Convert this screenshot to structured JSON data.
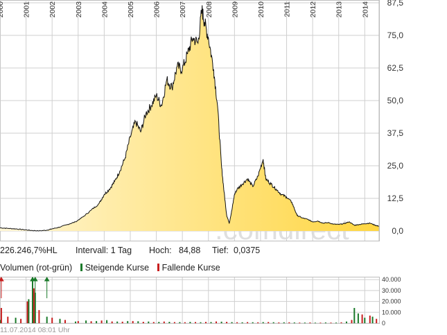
{
  "info": {
    "performance": "226.246,7%HL",
    "interval": "Intervall: 1 Tag",
    "high_label": "Hoch:",
    "high_value": "84,88",
    "low_label": "Tief:",
    "low_value": "0,0375"
  },
  "volume_legend": {
    "title": "Volumen (rot-grün)",
    "rising": "Steigende Kurse",
    "falling": "Fallende Kurse",
    "rising_color": "#1a7a2a",
    "falling_color": "#c81e1e"
  },
  "timestamp": "11.07.2014 08:01 Uhr",
  "watermark": ".comdirect",
  "colors": {
    "line": "#111111",
    "fill_light": "#fff6d6",
    "fill_dark": "#ffd640",
    "grid": "#cfcfcf",
    "volume_up": "#1a7a2a",
    "volume_down": "#c81e1e"
  },
  "chart_data": [
    {
      "type": "area",
      "title": "",
      "x_tick_labels": [
        "2000",
        "2001",
        "2002",
        "2003",
        "2004",
        "2005",
        "2006",
        "2007",
        "2008",
        "2009",
        "2010",
        "2011",
        "2012",
        "2013",
        "2014"
      ],
      "y_tick_labels": [
        "0,0",
        "12,5",
        "25,0",
        "37,5",
        "50,0",
        "62,5",
        "75,0",
        "87,5"
      ],
      "ylim": [
        0,
        87.5
      ],
      "xlim": [
        2000.0,
        2014.55
      ],
      "grid": true,
      "y_axis_side": "right",
      "series": [
        {
          "x": [
            2000.0,
            2000.3,
            2000.6,
            2000.9,
            2001.2,
            2001.5,
            2001.8,
            2002.0,
            2002.3,
            2002.6,
            2002.9,
            2003.2,
            2003.5,
            2003.8,
            2004.0,
            2004.2,
            2004.4,
            2004.6,
            2004.8,
            2005.0,
            2005.2,
            2005.4,
            2005.6,
            2005.8,
            2006.0,
            2006.2,
            2006.4,
            2006.6,
            2006.8,
            2007.0,
            2007.2,
            2007.4,
            2007.6,
            2007.75,
            2007.85,
            2008.0,
            2008.2,
            2008.35,
            2008.5,
            2008.6,
            2008.7,
            2008.8,
            2008.9,
            2009.0,
            2009.1,
            2009.3,
            2009.5,
            2009.7,
            2009.9,
            2010.1,
            2010.2,
            2010.4,
            2010.6,
            2010.8,
            2011.0,
            2011.2,
            2011.4,
            2011.6,
            2011.8,
            2012.0,
            2012.2,
            2012.4,
            2012.6,
            2012.8,
            2013.0,
            2013.2,
            2013.4,
            2013.6,
            2013.8,
            2014.0,
            2014.2,
            2014.4,
            2014.55
          ],
          "y": [
            1.2,
            1.0,
            0.8,
            0.5,
            0.2,
            0.0375,
            0.3,
            0.8,
            1.5,
            2.5,
            3.5,
            5.5,
            8.0,
            10.5,
            14.0,
            16.0,
            19.0,
            23.0,
            28.0,
            36.0,
            42.0,
            38.0,
            45.0,
            48.0,
            52.0,
            48.0,
            58.0,
            55.0,
            63.0,
            62.0,
            68.0,
            74.0,
            72.0,
            84.88,
            80.0,
            74.0,
            62.0,
            48.0,
            25.0,
            15.0,
            6.0,
            3.0,
            8.0,
            14.0,
            16.0,
            18.0,
            20.0,
            17.0,
            21.0,
            27.5,
            20.0,
            18.0,
            16.0,
            14.0,
            13.0,
            11.0,
            6.0,
            5.0,
            4.5,
            3.5,
            3.8,
            3.0,
            3.2,
            2.6,
            2.5,
            2.8,
            3.5,
            2.2,
            2.5,
            2.8,
            3.0,
            2.2,
            1.8
          ]
        }
      ]
    },
    {
      "type": "bar",
      "title": "Volumen (rot-grün)",
      "y_tick_labels": [
        "0",
        "10.000",
        "20.000",
        "30.000",
        "40.000"
      ],
      "ylim": [
        0,
        42000
      ],
      "xlim": [
        2000.0,
        2014.55
      ],
      "series": [
        {
          "name": "Steigende Kurse",
          "x": [
            2000.0,
            2000.6,
            2001.1,
            2001.25,
            2001.35,
            2001.8,
            2002.3,
            2002.9,
            2003.3,
            2003.7,
            2004.1,
            2004.5,
            2004.9,
            2005.3,
            2005.7,
            2006.1,
            2006.5,
            2006.9,
            2007.3,
            2007.7,
            2008.1,
            2008.5,
            2008.9,
            2009.3,
            2009.7,
            2010.1,
            2010.5,
            2010.9,
            2011.3,
            2011.7,
            2012.1,
            2012.5,
            2012.9,
            2013.3,
            2013.6,
            2013.75,
            2014.0,
            2014.3
          ],
          "values": [
            3000,
            5000,
            22000,
            42000,
            28000,
            6000,
            4000,
            1500,
            2500,
            2000,
            2800,
            1500,
            2000,
            1800,
            1500,
            1200,
            1300,
            1000,
            1200,
            900,
            1100,
            1400,
            1000,
            800,
            900,
            1000,
            900,
            800,
            700,
            600,
            500,
            700,
            600,
            1500,
            14000,
            9000,
            5000,
            6000
          ]
        },
        {
          "name": "Fallende Kurse",
          "x": [
            2000.05,
            2000.3,
            2000.8,
            2001.05,
            2001.3,
            2001.5,
            2002.0,
            2002.5,
            2003.0,
            2003.5,
            2003.9,
            2004.3,
            2004.7,
            2005.1,
            2005.5,
            2005.9,
            2006.3,
            2006.7,
            2007.1,
            2007.5,
            2007.9,
            2008.3,
            2008.7,
            2009.1,
            2009.5,
            2009.9,
            2010.3,
            2010.7,
            2011.1,
            2011.5,
            2011.9,
            2012.3,
            2012.7,
            2013.1,
            2013.5,
            2013.9,
            2014.2,
            2014.45
          ],
          "values": [
            14000,
            6000,
            4000,
            20000,
            32000,
            12000,
            5000,
            3000,
            2000,
            1800,
            2500,
            1600,
            1400,
            2000,
            1300,
            1100,
            1500,
            1000,
            900,
            1100,
            1200,
            1600,
            1300,
            900,
            1000,
            800,
            1100,
            700,
            800,
            600,
            700,
            500,
            600,
            800,
            3000,
            8000,
            7000,
            4000
          ]
        }
      ]
    }
  ]
}
